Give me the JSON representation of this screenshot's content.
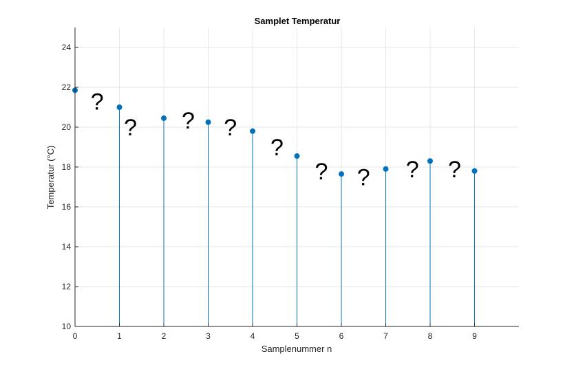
{
  "chart_data": {
    "type": "stem",
    "title": "Samplet Temperatur",
    "xlabel": "Samplenummer n",
    "ylabel": "Temperatur (°C)",
    "xlim": [
      0,
      10
    ],
    "ylim": [
      10,
      25
    ],
    "x_ticks": [
      0,
      1,
      2,
      3,
      4,
      5,
      6,
      7,
      8,
      9
    ],
    "y_ticks": [
      10,
      12,
      14,
      16,
      18,
      20,
      22,
      24
    ],
    "grid": true,
    "color": "#0072BD",
    "series": [
      {
        "x": [
          0,
          1,
          2,
          3,
          4,
          5,
          6,
          7,
          8,
          9
        ],
        "y": [
          21.85,
          21.0,
          20.45,
          20.25,
          19.8,
          18.55,
          17.65,
          17.9,
          18.3,
          17.8
        ]
      }
    ],
    "annotations": {
      "text": "?",
      "x": [
        0.5,
        1.25,
        2.55,
        3.5,
        4.55,
        5.55,
        6.5,
        7.6,
        8.55
      ],
      "y": [
        21.3,
        20.0,
        20.35,
        20.0,
        19.0,
        17.8,
        17.5,
        17.9,
        17.9
      ]
    }
  }
}
